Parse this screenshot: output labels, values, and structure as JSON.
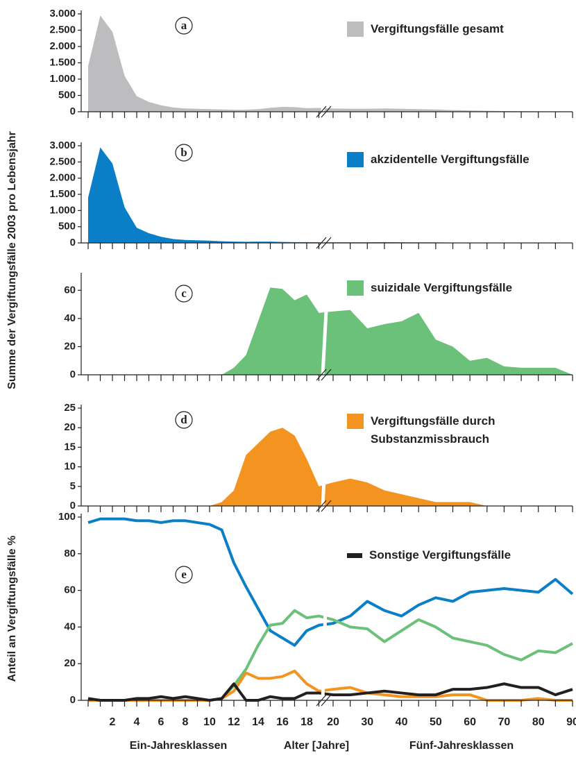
{
  "chart_data": [
    {
      "type": "area",
      "panel_label": "a",
      "ylabel": "Summe der Vergiftungsfälle 2003 pro Lebensjahr",
      "ylim": [
        0,
        3000
      ],
      "yticks": [
        0,
        500,
        {
          "value": 1000,
          "label": "1.000"
        },
        {
          "value": 1500,
          "label": "1.500"
        },
        {
          "value": 2000,
          "label": "2.000"
        },
        {
          "value": 2500,
          "label": "2.500"
        },
        {
          "value": 3000,
          "label": "3.000"
        }
      ],
      "series": [
        {
          "name": "Vergiftungsfälle gesamt",
          "color": "#bdbdbf",
          "values": [
            1400,
            2950,
            2450,
            1100,
            480,
            300,
            200,
            130,
            100,
            90,
            80,
            70,
            60,
            60,
            80,
            120,
            150,
            140,
            110,
            120,
            100,
            90,
            90,
            100,
            90,
            80,
            70,
            50,
            40,
            30,
            20,
            15,
            10,
            5,
            0
          ]
        }
      ]
    },
    {
      "type": "area",
      "panel_label": "b",
      "ylim": [
        0,
        3000
      ],
      "yticks": [
        0,
        500,
        {
          "value": 1000,
          "label": "1.000"
        },
        {
          "value": 1500,
          "label": "1.500"
        },
        {
          "value": 2000,
          "label": "2.000"
        },
        {
          "value": 2500,
          "label": "2.500"
        },
        {
          "value": 3000,
          "label": "3.000"
        }
      ],
      "series": [
        {
          "name": "akzidentelle Vergiftungsfälle",
          "color": "#0a7fc7",
          "values": [
            1400,
            2950,
            2450,
            1100,
            470,
            300,
            190,
            120,
            90,
            80,
            70,
            50,
            40,
            35,
            40,
            40,
            30,
            25,
            25,
            20,
            20,
            20,
            20,
            25,
            20,
            15,
            15,
            10,
            10,
            8,
            6,
            5,
            4,
            2,
            0
          ]
        }
      ]
    },
    {
      "type": "area",
      "panel_label": "c",
      "ylim": [
        0,
        70
      ],
      "yticks": [
        0,
        20,
        40,
        60
      ],
      "series": [
        {
          "name": "suizidale Vergiftungsfälle",
          "color": "#6cc17a",
          "values": [
            0,
            0,
            0,
            0,
            0,
            0,
            0,
            0,
            0,
            0,
            0,
            0,
            5,
            14,
            38,
            62,
            61,
            53,
            57,
            44,
            45,
            46,
            33,
            36,
            38,
            44,
            25,
            20,
            10,
            12,
            6,
            5,
            5,
            5,
            0
          ]
        }
      ]
    },
    {
      "type": "area",
      "panel_label": "d",
      "ylim": [
        0,
        25
      ],
      "yticks": [
        0,
        5,
        10,
        15,
        20,
        25
      ],
      "series": [
        {
          "name": "Vergiftungsfälle durch Substanzmissbrauch",
          "color": "#f39320",
          "values": [
            0,
            0,
            0,
            0,
            0,
            0,
            0,
            0,
            0,
            0,
            0,
            1,
            4,
            13,
            16,
            19,
            20,
            18,
            12,
            5,
            6,
            7,
            6,
            4,
            3,
            2,
            1,
            1,
            1,
            0,
            0,
            0,
            0,
            0,
            0
          ]
        }
      ]
    },
    {
      "type": "line",
      "panel_label": "e",
      "ylabel": "Anteil an Vergiftungsfälle %",
      "ylim": [
        0,
        100
      ],
      "yticks": [
        0,
        20,
        40,
        60,
        80,
        100
      ],
      "categories": [
        null,
        null,
        2,
        null,
        4,
        null,
        6,
        null,
        8,
        null,
        10,
        null,
        12,
        null,
        14,
        null,
        16,
        null,
        18,
        null,
        20,
        null,
        30,
        null,
        40,
        null,
        50,
        null,
        60,
        null,
        70,
        null,
        80,
        null,
        90
      ],
      "xlabels": [
        "Ein-Jahresklassen",
        "Alter [Jahre]",
        "Fünf-Jahresklassen"
      ],
      "series": [
        {
          "color": "#0a7fc7",
          "values": [
            97,
            99,
            99,
            99,
            98,
            98,
            97,
            98,
            98,
            97,
            96,
            93,
            75,
            62,
            50,
            38,
            34,
            30,
            38,
            41,
            42,
            46,
            54,
            49,
            46,
            52,
            56,
            54,
            59,
            60,
            61,
            60,
            59,
            66,
            58
          ]
        },
        {
          "color": "#6cc17a",
          "values": [
            0,
            0,
            0,
            0,
            0,
            0,
            0,
            0,
            0,
            0,
            0,
            1,
            8,
            17,
            30,
            41,
            42,
            49,
            45,
            46,
            44,
            40,
            39,
            32,
            38,
            44,
            40,
            34,
            32,
            30,
            25,
            22,
            27,
            26,
            31
          ]
        },
        {
          "color": "#f39320",
          "values": [
            0,
            0,
            0,
            0,
            0,
            0,
            0,
            0,
            0,
            0,
            0,
            1,
            5,
            15,
            12,
            12,
            13,
            16,
            9,
            5,
            6,
            7,
            4,
            3,
            2,
            2,
            2,
            3,
            3,
            0,
            0,
            0,
            1,
            0,
            0
          ]
        },
        {
          "name": "Sonstige Vergiftungsfälle",
          "color": "#231f20",
          "values": [
            1,
            0,
            0,
            0,
            1,
            1,
            2,
            1,
            2,
            1,
            0,
            1,
            9,
            0,
            0,
            2,
            1,
            1,
            4,
            4,
            3,
            3,
            4,
            5,
            4,
            3,
            3,
            6,
            6,
            7,
            9,
            7,
            7,
            3,
            6
          ]
        }
      ]
    }
  ]
}
